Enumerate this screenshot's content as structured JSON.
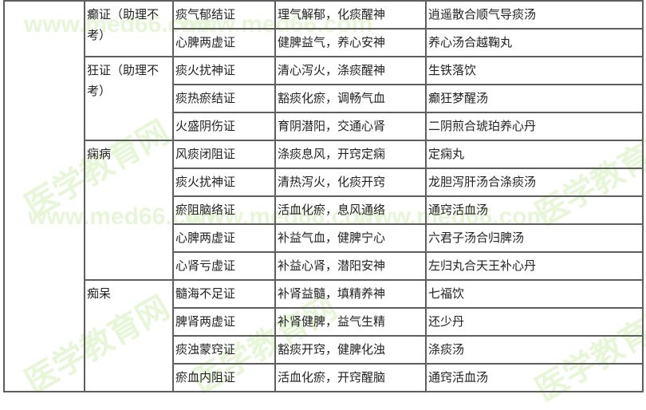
{
  "watermark": {
    "url": "www.med66.com",
    "brand": "医学教育网"
  },
  "groups": [
    {
      "disease": "癫证（助理不考）",
      "rows": [
        [
          "痰气郁结证",
          "理气解郁，化痰醒神",
          "逍遥散合顺气导痰汤"
        ],
        [
          "心脾两虚证",
          "健脾益气，养心安神",
          "养心汤合越鞠丸"
        ]
      ]
    },
    {
      "disease": "狂证（助理不考）",
      "rows": [
        [
          "痰火扰神证",
          "清心泻火，涤痰醒神",
          "生铁落饮"
        ],
        [
          "痰热瘀结证",
          "豁痰化瘀，调畅气血",
          "癫狂梦醒汤"
        ],
        [
          "火盛阴伤证",
          "育阴潜阳，交通心肾",
          "二阴煎合琥珀养心丹"
        ]
      ]
    },
    {
      "disease": "痫病",
      "rows": [
        [
          "风痰闭阻证",
          "涤痰息风，开窍定痫",
          "定痫丸"
        ],
        [
          "痰火扰神证",
          "清热泻火，化痰开窍",
          "龙胆泻肝汤合涤痰汤"
        ],
        [
          "瘀阻脑络证",
          "活血化瘀，息风通络",
          "通窍活血汤"
        ],
        [
          "心脾两虚证",
          "补益气血，健脾宁心",
          "六君子汤合归脾汤"
        ],
        [
          "心肾亏虚证",
          "补益心肾，潜阳安神",
          "左归丸合天王补心丹"
        ]
      ]
    },
    {
      "disease": "痴呆",
      "rows": [
        [
          "髓海不足证",
          "补肾益髓，填精养神",
          "七福饮"
        ],
        [
          "脾肾两虚证",
          "补肾健脾，益气生精",
          "还少丹"
        ],
        [
          "痰浊蒙窍证",
          "豁痰开窍，健脾化浊",
          "涤痰汤"
        ],
        [
          "瘀血内阻证",
          "活血化瘀，开窍醒脑",
          "通窍活血汤"
        ]
      ]
    }
  ]
}
